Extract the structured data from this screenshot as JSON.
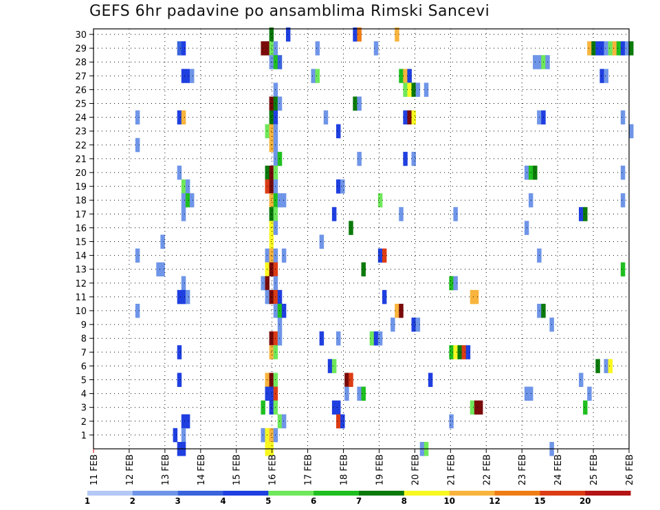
{
  "chart_data": {
    "type": "heatmap",
    "title": "GEFS 6hr padavine po ansamblima Rimski Sancevi",
    "xlabel": "",
    "ylabel": "",
    "x_tick_labels": [
      "11 FEB",
      "12 FEB",
      "13 FEB",
      "14 FEB",
      "15 FEB",
      "16 FEB",
      "17 FEB",
      "18 FEB",
      "19 FEB",
      "20 FEB",
      "21 FEB",
      "22 FEB",
      "23 FEB",
      "24 FEB",
      "25 FEB",
      "26 FEB"
    ],
    "x_range_steps": [
      0,
      60
    ],
    "y_tick_labels": [
      "1",
      "2",
      "3",
      "4",
      "5",
      "6",
      "7",
      "8",
      "9",
      "10",
      "11",
      "12",
      "13",
      "14",
      "15",
      "16",
      "17",
      "18",
      "19",
      "20",
      "21",
      "22",
      "23",
      "24",
      "25",
      "26",
      "27",
      "28",
      "29",
      "30"
    ],
    "y_range": [
      0,
      30
    ],
    "legend": {
      "placement": "bottom",
      "colors": [
        "#b4c8f5",
        "#6f95e8",
        "#3a64dc",
        "#1f3fe0",
        "#6ee85a",
        "#1fbf1f",
        "#0b7a0b",
        "#f8f820",
        "#f8b43c",
        "#f07d14",
        "#dc3c14",
        "#b41414",
        "#7a0a0a"
      ],
      "labels": [
        "1",
        "2",
        "3",
        "4",
        "5",
        "6",
        "7",
        "8",
        "10",
        "12",
        "15",
        "20"
      ]
    },
    "cells": [
      [
        42,
        30,
        6
      ],
      [
        46,
        30,
        3
      ],
      [
        72,
        30,
        8
      ],
      [
        62,
        30,
        3
      ],
      [
        63,
        30,
        9
      ],
      [
        20,
        29,
        2
      ],
      [
        21,
        29,
        3
      ],
      [
        40,
        29,
        12
      ],
      [
        41,
        29,
        12
      ],
      [
        42,
        29,
        4
      ],
      [
        43,
        29,
        1
      ],
      [
        53,
        29,
        1
      ],
      [
        67,
        29,
        1
      ],
      [
        118,
        29,
        8
      ],
      [
        119,
        29,
        6
      ],
      [
        120,
        29,
        3
      ],
      [
        121,
        29,
        3
      ],
      [
        122,
        29,
        1
      ],
      [
        123,
        29,
        4
      ],
      [
        124,
        29,
        8
      ],
      [
        125,
        29,
        5
      ],
      [
        126,
        29,
        3
      ],
      [
        127,
        29,
        1
      ],
      [
        128,
        29,
        6
      ],
      [
        42,
        28,
        1
      ],
      [
        43,
        28,
        5
      ],
      [
        44,
        28,
        2
      ],
      [
        105,
        28,
        1
      ],
      [
        106,
        28,
        1
      ],
      [
        107,
        28,
        4
      ],
      [
        108,
        28,
        1
      ],
      [
        21,
        27,
        3
      ],
      [
        22,
        27,
        3
      ],
      [
        23,
        27,
        1
      ],
      [
        52,
        27,
        1
      ],
      [
        53,
        27,
        4
      ],
      [
        73,
        27,
        5
      ],
      [
        74,
        27,
        8
      ],
      [
        75,
        27,
        3
      ],
      [
        121,
        27,
        3
      ],
      [
        122,
        27,
        1
      ],
      [
        43,
        26,
        1
      ],
      [
        74,
        26,
        4
      ],
      [
        75,
        26,
        7
      ],
      [
        76,
        26,
        6
      ],
      [
        77,
        26,
        1
      ],
      [
        79,
        26,
        1
      ],
      [
        42,
        25,
        12
      ],
      [
        43,
        25,
        6
      ],
      [
        44,
        25,
        1
      ],
      [
        62,
        25,
        6
      ],
      [
        63,
        25,
        1
      ],
      [
        10,
        24,
        1
      ],
      [
        20,
        24,
        3
      ],
      [
        21,
        24,
        8
      ],
      [
        42,
        24,
        6
      ],
      [
        43,
        24,
        3
      ],
      [
        55,
        24,
        1
      ],
      [
        74,
        24,
        3
      ],
      [
        75,
        24,
        12
      ],
      [
        76,
        24,
        7
      ],
      [
        106,
        24,
        1
      ],
      [
        107,
        24,
        3
      ],
      [
        126,
        24,
        1
      ],
      [
        41,
        23,
        4
      ],
      [
        42,
        23,
        8
      ],
      [
        43,
        23,
        1
      ],
      [
        58,
        23,
        3
      ],
      [
        128,
        23,
        1
      ],
      [
        10,
        22,
        1
      ],
      [
        42,
        22,
        8
      ],
      [
        43,
        22,
        1
      ],
      [
        43,
        21,
        1
      ],
      [
        44,
        21,
        5
      ],
      [
        63,
        21,
        1
      ],
      [
        74,
        21,
        3
      ],
      [
        76,
        21,
        1
      ],
      [
        20,
        20,
        1
      ],
      [
        41,
        20,
        6
      ],
      [
        42,
        20,
        12
      ],
      [
        43,
        20,
        4
      ],
      [
        103,
        20,
        1
      ],
      [
        104,
        20,
        5
      ],
      [
        105,
        20,
        6
      ],
      [
        126,
        20,
        1
      ],
      [
        21,
        19,
        4
      ],
      [
        22,
        19,
        1
      ],
      [
        41,
        19,
        10
      ],
      [
        42,
        19,
        12
      ],
      [
        43,
        19,
        1
      ],
      [
        58,
        19,
        3
      ],
      [
        59,
        19,
        1
      ],
      [
        21,
        18,
        1
      ],
      [
        22,
        18,
        5
      ],
      [
        23,
        18,
        1
      ],
      [
        42,
        18,
        8
      ],
      [
        43,
        18,
        5
      ],
      [
        44,
        18,
        1
      ],
      [
        45,
        18,
        1
      ],
      [
        68,
        18,
        4
      ],
      [
        104,
        18,
        1
      ],
      [
        126,
        18,
        1
      ],
      [
        21,
        17,
        1
      ],
      [
        42,
        17,
        6
      ],
      [
        43,
        17,
        4
      ],
      [
        57,
        17,
        3
      ],
      [
        73,
        17,
        1
      ],
      [
        86,
        17,
        1
      ],
      [
        116,
        17,
        3
      ],
      [
        117,
        17,
        6
      ],
      [
        42,
        16,
        7
      ],
      [
        43,
        16,
        1
      ],
      [
        61,
        16,
        6
      ],
      [
        103,
        16,
        1
      ],
      [
        16,
        15,
        1
      ],
      [
        42,
        15,
        7
      ],
      [
        54,
        15,
        1
      ],
      [
        10,
        14,
        1
      ],
      [
        41,
        14,
        1
      ],
      [
        42,
        14,
        8
      ],
      [
        43,
        14,
        1
      ],
      [
        45,
        14,
        1
      ],
      [
        68,
        14,
        3
      ],
      [
        69,
        14,
        10
      ],
      [
        106,
        14,
        1
      ],
      [
        15,
        13,
        1
      ],
      [
        16,
        13,
        1
      ],
      [
        41,
        13,
        7
      ],
      [
        42,
        13,
        12
      ],
      [
        43,
        13,
        10
      ],
      [
        64,
        13,
        6
      ],
      [
        126,
        13,
        5
      ],
      [
        21,
        12,
        1
      ],
      [
        40,
        12,
        1
      ],
      [
        41,
        12,
        12
      ],
      [
        43,
        12,
        1
      ],
      [
        85,
        12,
        5
      ],
      [
        86,
        12,
        1
      ],
      [
        20,
        11,
        3
      ],
      [
        21,
        11,
        3
      ],
      [
        22,
        11,
        1
      ],
      [
        41,
        11,
        1
      ],
      [
        42,
        11,
        12
      ],
      [
        43,
        11,
        10
      ],
      [
        44,
        11,
        3
      ],
      [
        69,
        11,
        3
      ],
      [
        90,
        11,
        8
      ],
      [
        91,
        11,
        8
      ],
      [
        10,
        10,
        1
      ],
      [
        43,
        10,
        1
      ],
      [
        44,
        10,
        5
      ],
      [
        45,
        10,
        3
      ],
      [
        72,
        10,
        8
      ],
      [
        73,
        10,
        12
      ],
      [
        106,
        10,
        1
      ],
      [
        107,
        10,
        6
      ],
      [
        44,
        9,
        1
      ],
      [
        71,
        9,
        1
      ],
      [
        76,
        9,
        3
      ],
      [
        77,
        9,
        1
      ],
      [
        109,
        9,
        1
      ],
      [
        42,
        8,
        12
      ],
      [
        43,
        8,
        10
      ],
      [
        44,
        8,
        1
      ],
      [
        54,
        8,
        3
      ],
      [
        58,
        8,
        1
      ],
      [
        66,
        8,
        4
      ],
      [
        67,
        8,
        3
      ],
      [
        68,
        8,
        1
      ],
      [
        20,
        7,
        3
      ],
      [
        42,
        7,
        8
      ],
      [
        43,
        7,
        4
      ],
      [
        85,
        7,
        5
      ],
      [
        86,
        7,
        7
      ],
      [
        87,
        7,
        6
      ],
      [
        88,
        7,
        10
      ],
      [
        89,
        7,
        3
      ],
      [
        56,
        6,
        3
      ],
      [
        57,
        6,
        4
      ],
      [
        120,
        6,
        6
      ],
      [
        122,
        6,
        1
      ],
      [
        123,
        6,
        7
      ],
      [
        20,
        5,
        3
      ],
      [
        41,
        5,
        8
      ],
      [
        42,
        5,
        12
      ],
      [
        43,
        5,
        4
      ],
      [
        60,
        5,
        12
      ],
      [
        61,
        5,
        10
      ],
      [
        80,
        5,
        3
      ],
      [
        116,
        5,
        1
      ],
      [
        41,
        4,
        3
      ],
      [
        42,
        4,
        3
      ],
      [
        43,
        4,
        10
      ],
      [
        60,
        4,
        1
      ],
      [
        63,
        4,
        1
      ],
      [
        64,
        4,
        5
      ],
      [
        103,
        4,
        1
      ],
      [
        104,
        4,
        1
      ],
      [
        118,
        4,
        1
      ],
      [
        40,
        3,
        5
      ],
      [
        42,
        3,
        3
      ],
      [
        43,
        3,
        4
      ],
      [
        57,
        3,
        3
      ],
      [
        58,
        3,
        3
      ],
      [
        90,
        3,
        4
      ],
      [
        91,
        3,
        12
      ],
      [
        92,
        3,
        12
      ],
      [
        117,
        3,
        5
      ],
      [
        21,
        2,
        3
      ],
      [
        22,
        2,
        3
      ],
      [
        44,
        2,
        4
      ],
      [
        45,
        2,
        1
      ],
      [
        58,
        2,
        10
      ],
      [
        59,
        2,
        3
      ],
      [
        85,
        2,
        1
      ],
      [
        19,
        1,
        3
      ],
      [
        21,
        1,
        1
      ],
      [
        40,
        1,
        1
      ],
      [
        41,
        1,
        7
      ],
      [
        42,
        1,
        8
      ],
      [
        43,
        1,
        1
      ],
      [
        20,
        0,
        3
      ],
      [
        21,
        0,
        3
      ],
      [
        41,
        0,
        7
      ],
      [
        42,
        0,
        7
      ],
      [
        78,
        0,
        1
      ],
      [
        79,
        0,
        4
      ],
      [
        109,
        0,
        1
      ]
    ]
  }
}
